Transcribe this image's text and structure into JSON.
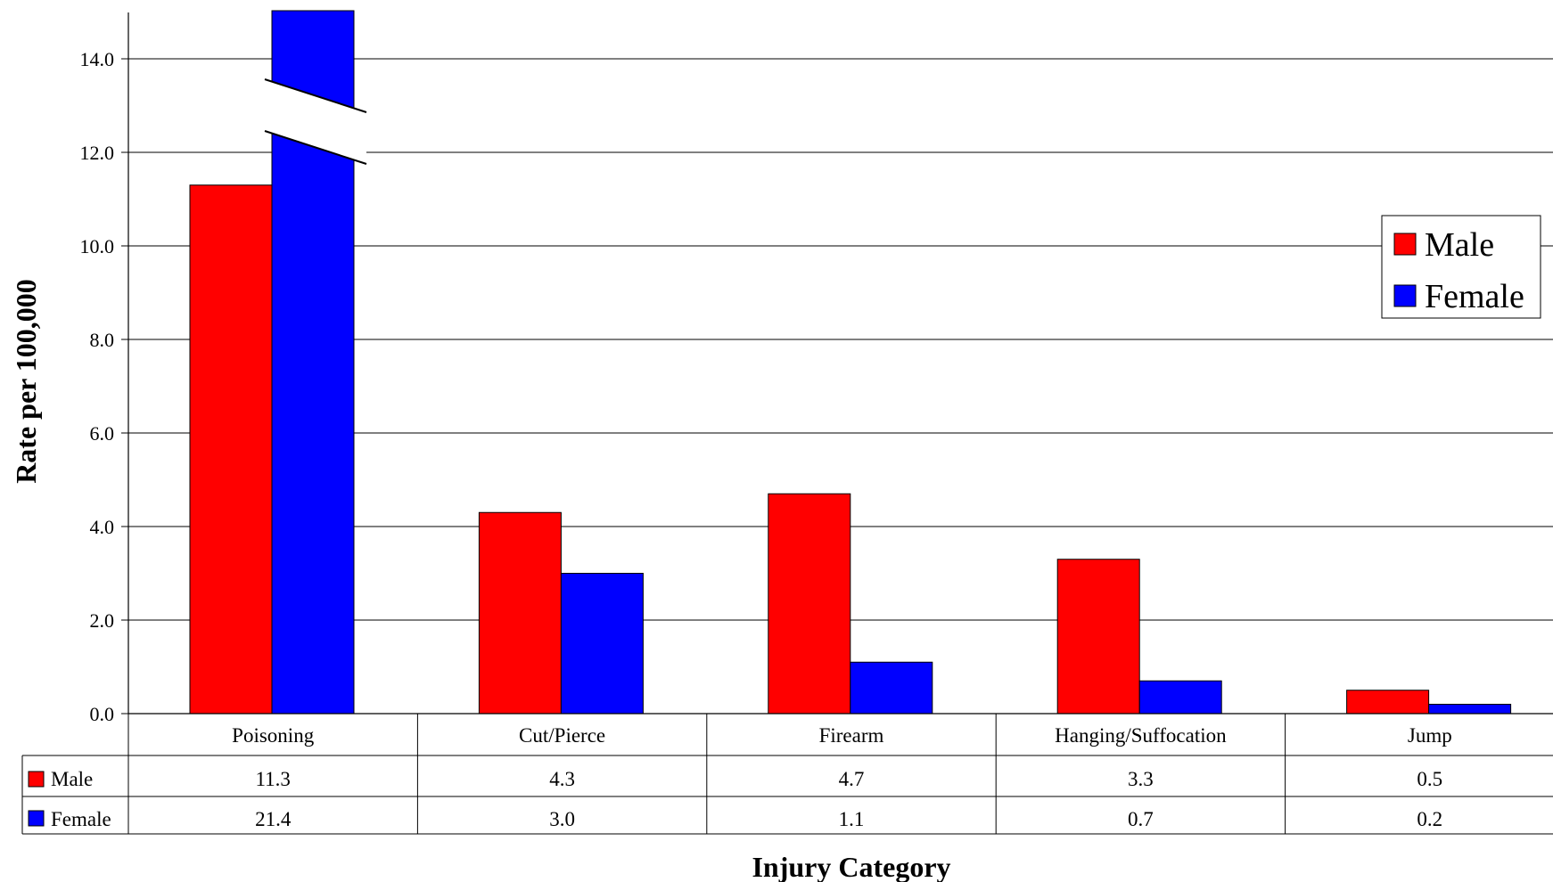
{
  "chart_data": {
    "type": "bar",
    "categories": [
      "Poisoning",
      "Cut/Pierce",
      "Firearm",
      "Hanging/Suffocation",
      "Jump"
    ],
    "series": [
      {
        "name": "Male",
        "color": "#ff0000",
        "values": [
          11.3,
          4.3,
          4.7,
          3.3,
          0.5
        ],
        "labels": [
          "11.3",
          "4.3",
          "4.7",
          "3.3",
          "0.5"
        ]
      },
      {
        "name": "Female",
        "color": "#0000ff",
        "values": [
          21.4,
          3.0,
          1.1,
          0.7,
          0.2
        ],
        "labels": [
          "21.4",
          "3.0",
          "1.1",
          "0.7",
          "0.2"
        ]
      }
    ],
    "title": "",
    "xlabel": "Injury Category",
    "ylabel": "Rate per 100,000",
    "ylim": [
      0,
      14
    ],
    "yticks": [
      "0.0",
      "2.0",
      "4.0",
      "6.0",
      "8.0",
      "10.0",
      "12.0",
      "14.0"
    ],
    "axis_break": true,
    "grid": true,
    "legend_position": "right",
    "data_table": true
  }
}
